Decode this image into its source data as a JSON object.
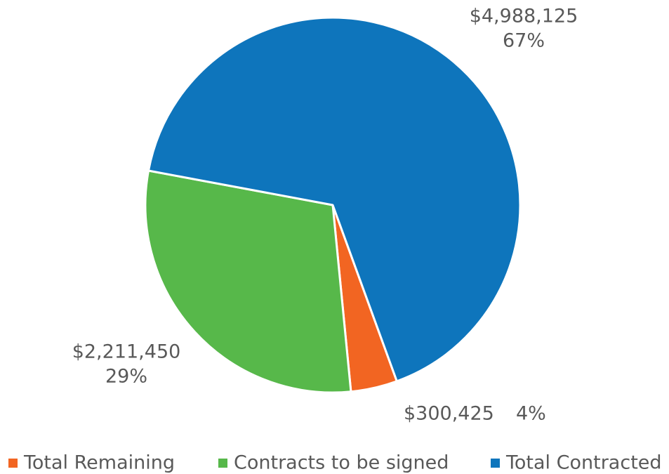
{
  "chart_data": {
    "type": "pie",
    "categories": [
      "Total Remaining",
      "Contracts to be signed",
      "Total Contracted"
    ],
    "values": [
      300425,
      2211450,
      4988125
    ],
    "value_labels": [
      "$300,425",
      "$2,211,450",
      "$4,988,125"
    ],
    "percent_labels": [
      "4%",
      "29%",
      "67%"
    ],
    "colors": [
      "#f26522",
      "#57b84a",
      "#0e75bc"
    ],
    "legend": "bottom"
  }
}
